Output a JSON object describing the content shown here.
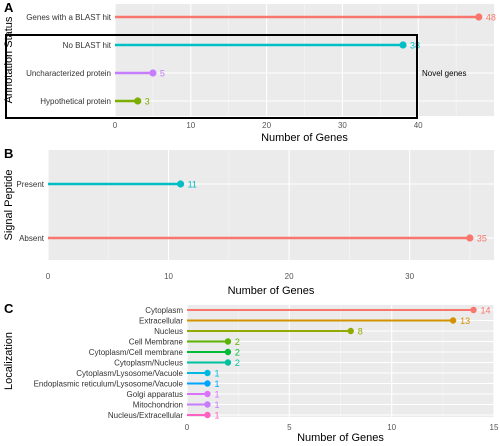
{
  "chart_data": [
    {
      "panel": "A",
      "type": "lollipop",
      "orientation": "horizontal",
      "ylabel": "Annotation Status",
      "xlabel": "Number of Genes",
      "xlim": [
        0,
        50
      ],
      "xticks": [
        0,
        10,
        20,
        30,
        40
      ],
      "grid": true,
      "categories": [
        "Genes with a BLAST hit",
        "No BLAST hit",
        "Uncharacterized protein",
        "Hypothetical protein"
      ],
      "values": [
        48,
        38,
        5,
        3
      ],
      "colors": [
        "#F8766D",
        "#00BFC4",
        "#C77CFF",
        "#7CAE00"
      ],
      "annotation": {
        "text": "Novel genes",
        "group": [
          "No BLAST hit",
          "Uncharacterized protein",
          "Hypothetical protein"
        ]
      }
    },
    {
      "panel": "B",
      "type": "lollipop",
      "orientation": "horizontal",
      "ylabel": "Signal Peptide",
      "xlabel": "Number of Genes",
      "xlim": [
        0,
        37
      ],
      "xticks": [
        0,
        10,
        20,
        30
      ],
      "grid": true,
      "categories": [
        "Present",
        "Absent"
      ],
      "values": [
        11,
        35
      ],
      "colors": [
        "#00BFC4",
        "#F8766D"
      ]
    },
    {
      "panel": "C",
      "type": "lollipop",
      "orientation": "horizontal",
      "ylabel": "Localization",
      "xlabel": "Number of Genes",
      "xlim": [
        0,
        15
      ],
      "xticks": [
        0,
        5,
        10,
        15
      ],
      "grid": true,
      "categories": [
        "Cytoplasm",
        "Extracellular",
        "Nucleus",
        "Cell Membrane",
        "Cytoplasm/Cell membrane",
        "Cytoplasm/Nucleus",
        "Cytoplasm/Lysosome/Vacuole",
        "Endoplasmic reticulum/Lysosome/Vacuole",
        "Golgi apparatus",
        "Mitochondrion",
        "Nucleus/Extracellular"
      ],
      "values": [
        14,
        13,
        8,
        2,
        2,
        2,
        1,
        1,
        1,
        1,
        1
      ],
      "colors": [
        "#F8766D",
        "#D39200",
        "#93AA00",
        "#5BB300",
        "#00BA38",
        "#00C19F",
        "#00B9E3",
        "#00A5FF",
        "#DB72FB",
        "#C77CFF",
        "#FF61C3"
      ]
    }
  ]
}
